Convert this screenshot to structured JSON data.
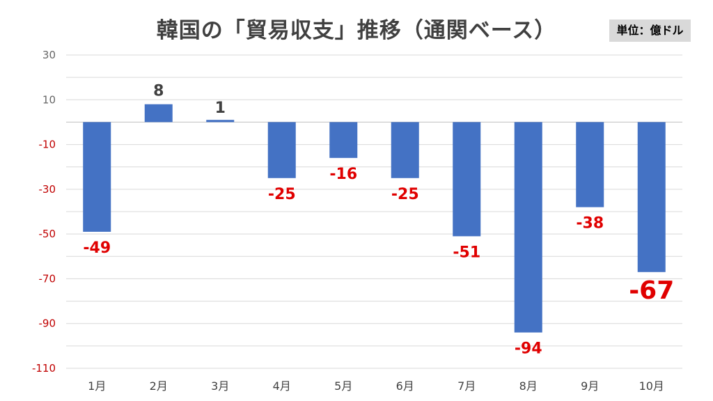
{
  "chart_data": {
    "type": "bar",
    "title": "韓国の「貿易収支」推移（通関ベース）",
    "unit_label": "単位：億ドル",
    "categories": [
      "1月",
      "2月",
      "3月",
      "4月",
      "5月",
      "6月",
      "7月",
      "8月",
      "9月",
      "10月"
    ],
    "values": [
      -49,
      8,
      1,
      -25,
      -16,
      -25,
      -51,
      -94,
      -38,
      -67
    ],
    "value_labels": [
      "-49",
      "8",
      "1",
      "-25",
      "-16",
      "-25",
      "-51",
      "-94",
      "-38",
      "-67"
    ],
    "yticks": [
      30,
      10,
      -10,
      -30,
      -50,
      -70,
      -90,
      -110
    ],
    "ylim": [
      -110,
      30
    ],
    "grid": true,
    "colors": {
      "bar": "#4472c4",
      "positive_label": "#404040",
      "negative_label": "#e00000",
      "negative_tick": "#c00000",
      "positive_tick": "#666666",
      "gridline": "#d9d9d9",
      "zero_line": "#bfbfbf"
    }
  }
}
